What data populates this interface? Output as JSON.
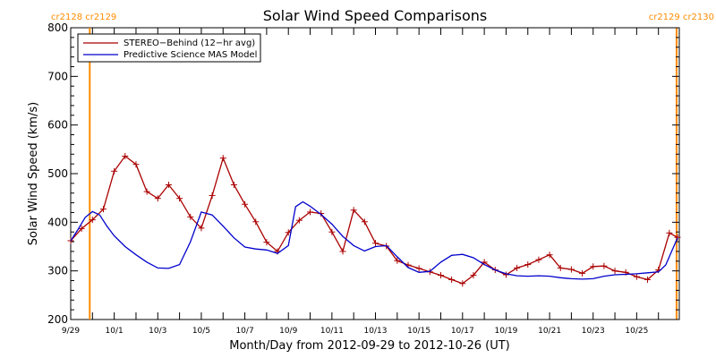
{
  "chart_data": {
    "type": "line",
    "title": "Solar Wind Speed Comparisons",
    "xlabel": "Month/Day from 2012-09-29 to 2012-10-26 (UT)",
    "ylabel": "Solar Wind Speed (km/s)",
    "xlim": [
      "2012-09-29",
      "2012-10-26T23:00"
    ],
    "ylim": [
      200,
      800
    ],
    "yticks": [
      "200",
      "300",
      "400",
      "500",
      "600",
      "700",
      "800"
    ],
    "xtick_labels": [
      {
        "date": "2012-09-29",
        "label": "9/29"
      },
      {
        "date": "2012-10-01",
        "label": "10/1"
      },
      {
        "date": "2012-10-03",
        "label": "10/3"
      },
      {
        "date": "2012-10-05",
        "label": "10/5"
      },
      {
        "date": "2012-10-07",
        "label": "10/7"
      },
      {
        "date": "2012-10-09",
        "label": "10/9"
      },
      {
        "date": "2012-10-11",
        "label": "10/11"
      },
      {
        "date": "2012-10-13",
        "label": "10/13"
      },
      {
        "date": "2012-10-15",
        "label": "10/15"
      },
      {
        "date": "2012-10-17",
        "label": "10/17"
      },
      {
        "date": "2012-10-19",
        "label": "10/19"
      },
      {
        "date": "2012-10-21",
        "label": "10/21"
      },
      {
        "date": "2012-10-23",
        "label": "10/23"
      },
      {
        "date": "2012-10-25",
        "label": "10/25"
      }
    ],
    "carrington_markers": [
      {
        "date": "2012-09-29T21:00",
        "label": "cr2128 cr2129",
        "side": "left"
      },
      {
        "date": "2012-10-26T20:00",
        "label": "cr2129 cr2130",
        "side": "right"
      }
    ],
    "legend_position": "top-left",
    "series": [
      {
        "name": "STEREO−Behind (12−hr avg)",
        "color": "#aa0000",
        "marker": "plus",
        "points": [
          [
            "2012-09-29T00:00",
            362
          ],
          [
            "2012-09-29T12:00",
            387
          ],
          [
            "2012-09-30T00:00",
            405
          ],
          [
            "2012-09-30T12:00",
            427
          ],
          [
            "2012-10-01T00:00",
            505
          ],
          [
            "2012-10-01T12:00",
            536
          ],
          [
            "2012-10-02T00:00",
            519
          ],
          [
            "2012-10-02T12:00",
            463
          ],
          [
            "2012-10-03T00:00",
            449
          ],
          [
            "2012-10-03T12:00",
            477
          ],
          [
            "2012-10-04T00:00",
            449
          ],
          [
            "2012-10-04T12:00",
            411
          ],
          [
            "2012-10-05T00:00",
            388
          ],
          [
            "2012-10-05T12:00",
            455
          ],
          [
            "2012-10-06T00:00",
            532
          ],
          [
            "2012-10-06T12:00",
            477
          ],
          [
            "2012-10-07T00:00",
            437
          ],
          [
            "2012-10-07T12:00",
            401
          ],
          [
            "2012-10-08T00:00",
            359
          ],
          [
            "2012-10-08T12:00",
            340
          ],
          [
            "2012-10-09T00:00",
            379
          ],
          [
            "2012-10-09T12:00",
            404
          ],
          [
            "2012-10-10T00:00",
            421
          ],
          [
            "2012-10-10T12:00",
            418
          ],
          [
            "2012-10-11T00:00",
            380
          ],
          [
            "2012-10-11T12:00",
            340
          ],
          [
            "2012-10-12T00:00",
            425
          ],
          [
            "2012-10-12T12:00",
            401
          ],
          [
            "2012-10-13T00:00",
            357
          ],
          [
            "2012-10-13T12:00",
            351
          ],
          [
            "2012-10-14T00:00",
            321
          ],
          [
            "2012-10-14T12:00",
            312
          ],
          [
            "2012-10-15T00:00",
            305
          ],
          [
            "2012-10-15T12:00",
            298
          ],
          [
            "2012-10-16T00:00",
            291
          ],
          [
            "2012-10-16T12:00",
            282
          ],
          [
            "2012-10-17T00:00",
            274
          ],
          [
            "2012-10-17T12:00",
            291
          ],
          [
            "2012-10-18T00:00",
            318
          ],
          [
            "2012-10-18T12:00",
            302
          ],
          [
            "2012-10-19T00:00",
            292
          ],
          [
            "2012-10-19T12:00",
            306
          ],
          [
            "2012-10-20T00:00",
            313
          ],
          [
            "2012-10-20T12:00",
            323
          ],
          [
            "2012-10-21T00:00",
            333
          ],
          [
            "2012-10-21T12:00",
            306
          ],
          [
            "2012-10-22T00:00",
            303
          ],
          [
            "2012-10-22T12:00",
            295
          ],
          [
            "2012-10-23T00:00",
            309
          ],
          [
            "2012-10-23T12:00",
            310
          ],
          [
            "2012-10-24T00:00",
            300
          ],
          [
            "2012-10-24T12:00",
            297
          ],
          [
            "2012-10-25T00:00",
            288
          ],
          [
            "2012-10-25T12:00",
            282
          ],
          [
            "2012-10-26T00:00",
            302
          ],
          [
            "2012-10-26T12:00",
            378
          ],
          [
            "2012-10-26T21:00",
            369
          ]
        ]
      },
      {
        "name": "Predictive Science MAS Model",
        "color": "#0000cc",
        "points": [
          [
            "2012-09-29T00:00",
            362
          ],
          [
            "2012-09-29T08:00",
            385
          ],
          [
            "2012-09-29T16:00",
            410
          ],
          [
            "2012-09-30T00:00",
            422
          ],
          [
            "2012-09-30T08:00",
            415
          ],
          [
            "2012-09-30T16:00",
            392
          ],
          [
            "2012-10-01T00:00",
            372
          ],
          [
            "2012-10-01T12:00",
            350
          ],
          [
            "2012-10-02T00:00",
            333
          ],
          [
            "2012-10-02T12:00",
            318
          ],
          [
            "2012-10-03T00:00",
            306
          ],
          [
            "2012-10-03T12:00",
            305
          ],
          [
            "2012-10-04T00:00",
            313
          ],
          [
            "2012-10-04T12:00",
            360
          ],
          [
            "2012-10-05T00:00",
            421
          ],
          [
            "2012-10-05T12:00",
            415
          ],
          [
            "2012-10-06T00:00",
            392
          ],
          [
            "2012-10-06T12:00",
            368
          ],
          [
            "2012-10-07T00:00",
            349
          ],
          [
            "2012-10-07T12:00",
            345
          ],
          [
            "2012-10-08T00:00",
            343
          ],
          [
            "2012-10-08T12:00",
            336
          ],
          [
            "2012-10-09T00:00",
            352
          ],
          [
            "2012-10-09T08:00",
            432
          ],
          [
            "2012-10-09T16:00",
            442
          ],
          [
            "2012-10-10T00:00",
            433
          ],
          [
            "2012-10-10T12:00",
            416
          ],
          [
            "2012-10-11T00:00",
            396
          ],
          [
            "2012-10-11T12:00",
            371
          ],
          [
            "2012-10-12T00:00",
            352
          ],
          [
            "2012-10-12T12:00",
            341
          ],
          [
            "2012-10-13T00:00",
            350
          ],
          [
            "2012-10-13T12:00",
            352
          ],
          [
            "2012-10-14T00:00",
            329
          ],
          [
            "2012-10-14T12:00",
            307
          ],
          [
            "2012-10-15T00:00",
            297
          ],
          [
            "2012-10-15T12:00",
            299
          ],
          [
            "2012-10-16T00:00",
            318
          ],
          [
            "2012-10-16T12:00",
            332
          ],
          [
            "2012-10-17T00:00",
            334
          ],
          [
            "2012-10-17T12:00",
            327
          ],
          [
            "2012-10-18T00:00",
            313
          ],
          [
            "2012-10-18T12:00",
            302
          ],
          [
            "2012-10-19T00:00",
            294
          ],
          [
            "2012-10-19T12:00",
            290
          ],
          [
            "2012-10-20T00:00",
            289
          ],
          [
            "2012-10-20T12:00",
            290
          ],
          [
            "2012-10-21T00:00",
            289
          ],
          [
            "2012-10-21T12:00",
            286
          ],
          [
            "2012-10-22T00:00",
            284
          ],
          [
            "2012-10-22T12:00",
            283
          ],
          [
            "2012-10-23T00:00",
            284
          ],
          [
            "2012-10-23T12:00",
            289
          ],
          [
            "2012-10-24T00:00",
            292
          ],
          [
            "2012-10-24T12:00",
            293
          ],
          [
            "2012-10-25T00:00",
            294
          ],
          [
            "2012-10-25T12:00",
            296
          ],
          [
            "2012-10-26T00:00",
            298
          ],
          [
            "2012-10-26T08:00",
            312
          ],
          [
            "2012-10-26T21:00",
            368
          ]
        ]
      }
    ]
  }
}
